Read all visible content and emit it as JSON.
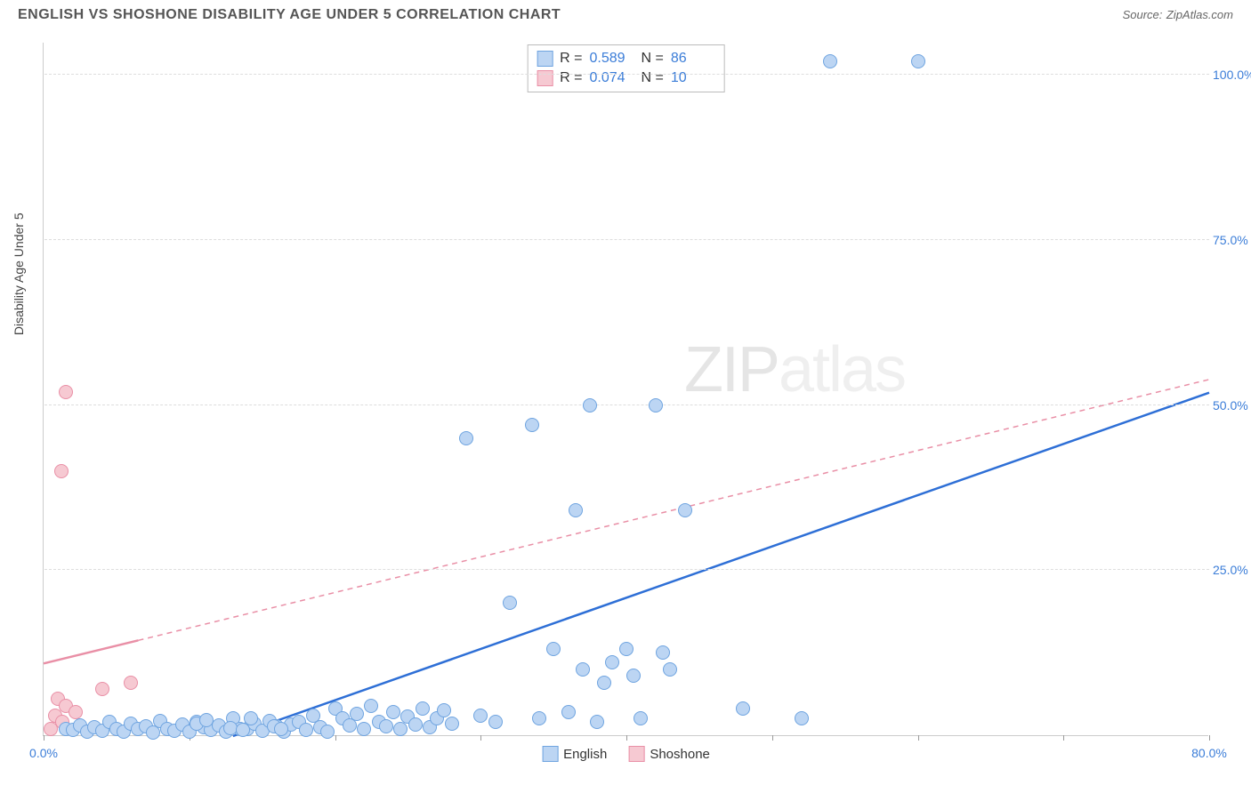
{
  "header": {
    "title": "ENGLISH VS SHOSHONE DISABILITY AGE UNDER 5 CORRELATION CHART",
    "source_label": "Source:",
    "source_value": "ZipAtlas.com"
  },
  "chart": {
    "type": "scatter",
    "y_axis_label": "Disability Age Under 5",
    "xlim": [
      0,
      80
    ],
    "ylim": [
      0,
      105
    ],
    "x_ticks": [
      0,
      10,
      20,
      30,
      40,
      50,
      60,
      70,
      80
    ],
    "x_tick_labels": {
      "0": "0.0%",
      "80": "80.0%"
    },
    "y_ticks": [
      25,
      50,
      75,
      100
    ],
    "y_tick_labels": {
      "25": "25.0%",
      "50": "50.0%",
      "75": "75.0%",
      "100": "100.0%"
    },
    "grid_color": "#dddddd",
    "axis_color": "#cccccc",
    "background_color": "#ffffff",
    "point_radius": 8,
    "series": {
      "english": {
        "label": "English",
        "fill": "#bcd5f3",
        "stroke": "#6fa4e0",
        "line_color": "#2e6fd6",
        "line_width": 2.5,
        "line_dash": null,
        "trend_start": [
          13,
          0
        ],
        "trend_end": [
          80,
          52
        ],
        "stats": {
          "r_label": "R =",
          "r": "0.589",
          "n_label": "N =",
          "n": "86"
        },
        "points": [
          [
            1.5,
            1
          ],
          [
            2,
            0.8
          ],
          [
            2.5,
            1.5
          ],
          [
            3,
            0.5
          ],
          [
            3.5,
            1.2
          ],
          [
            4,
            0.7
          ],
          [
            4.5,
            2
          ],
          [
            5,
            1
          ],
          [
            5.5,
            0.6
          ],
          [
            6,
            1.8
          ],
          [
            6.5,
            0.9
          ],
          [
            7,
            1.3
          ],
          [
            7.5,
            0.4
          ],
          [
            8,
            2.2
          ],
          [
            8.5,
            1
          ],
          [
            9,
            0.7
          ],
          [
            9.5,
            1.6
          ],
          [
            10,
            0.5
          ],
          [
            10.5,
            2
          ],
          [
            11,
            1.2
          ],
          [
            11.5,
            0.8
          ],
          [
            12,
            1.5
          ],
          [
            12.5,
            0.6
          ],
          [
            13,
            2.5
          ],
          [
            13.5,
            1
          ],
          [
            14,
            0.9
          ],
          [
            14.5,
            1.8
          ],
          [
            15,
            0.7
          ],
          [
            15.5,
            2.2
          ],
          [
            16,
            1.3
          ],
          [
            16.5,
            0.5
          ],
          [
            17,
            1.6
          ],
          [
            17.5,
            2
          ],
          [
            18,
            0.8
          ],
          [
            18.5,
            3
          ],
          [
            19,
            1.2
          ],
          [
            19.5,
            0.6
          ],
          [
            20,
            4
          ],
          [
            20.5,
            2.5
          ],
          [
            21,
            1.5
          ],
          [
            21.5,
            3.2
          ],
          [
            22,
            1
          ],
          [
            22.5,
            4.5
          ],
          [
            23,
            2
          ],
          [
            23.5,
            1.3
          ],
          [
            24,
            3.5
          ],
          [
            24.5,
            0.9
          ],
          [
            25,
            2.8
          ],
          [
            25.5,
            1.6
          ],
          [
            26,
            4
          ],
          [
            26.5,
            1.2
          ],
          [
            27,
            2.5
          ],
          [
            27.5,
            3.8
          ],
          [
            28,
            1.8
          ],
          [
            29,
            45
          ],
          [
            30,
            3
          ],
          [
            31,
            2
          ],
          [
            32,
            20
          ],
          [
            33.5,
            47
          ],
          [
            34,
            2.5
          ],
          [
            35,
            13
          ],
          [
            36,
            3.5
          ],
          [
            36.5,
            34
          ],
          [
            37,
            10
          ],
          [
            37.5,
            50
          ],
          [
            38,
            2
          ],
          [
            38.5,
            8
          ],
          [
            39,
            11
          ],
          [
            40,
            13
          ],
          [
            40.5,
            9
          ],
          [
            41,
            2.5
          ],
          [
            42,
            50
          ],
          [
            42.5,
            12.5
          ],
          [
            43,
            10
          ],
          [
            44,
            34
          ],
          [
            48,
            4
          ],
          [
            52,
            2.5
          ],
          [
            54,
            102
          ],
          [
            60,
            102
          ],
          [
            10.5,
            1.8
          ],
          [
            11.2,
            2.3
          ],
          [
            12.8,
            1.1
          ],
          [
            13.7,
            0.8
          ],
          [
            14.2,
            2.6
          ],
          [
            15.8,
            1.4
          ],
          [
            16.3,
            0.9
          ]
        ]
      },
      "shoshone": {
        "label": "Shoshone",
        "fill": "#f6c9d2",
        "stroke": "#e98fa6",
        "line_color": "#e98fa6",
        "line_width": 1.5,
        "line_dash": "6,5",
        "trend_start": [
          0,
          11
        ],
        "trend_end": [
          80,
          54
        ],
        "trend_solid_until_x": 6.5,
        "stats": {
          "r_label": "R =",
          "r": "0.074",
          "n_label": "N =",
          "n": "10"
        },
        "points": [
          [
            0.5,
            1
          ],
          [
            0.8,
            3
          ],
          [
            1,
            5.5
          ],
          [
            1.3,
            2
          ],
          [
            1.5,
            4.5
          ],
          [
            1.2,
            40
          ],
          [
            1.5,
            52
          ],
          [
            4,
            7
          ],
          [
            6,
            8
          ],
          [
            2.2,
            3.5
          ]
        ]
      }
    },
    "watermark": {
      "bold": "ZIP",
      "light": "atlas"
    }
  }
}
